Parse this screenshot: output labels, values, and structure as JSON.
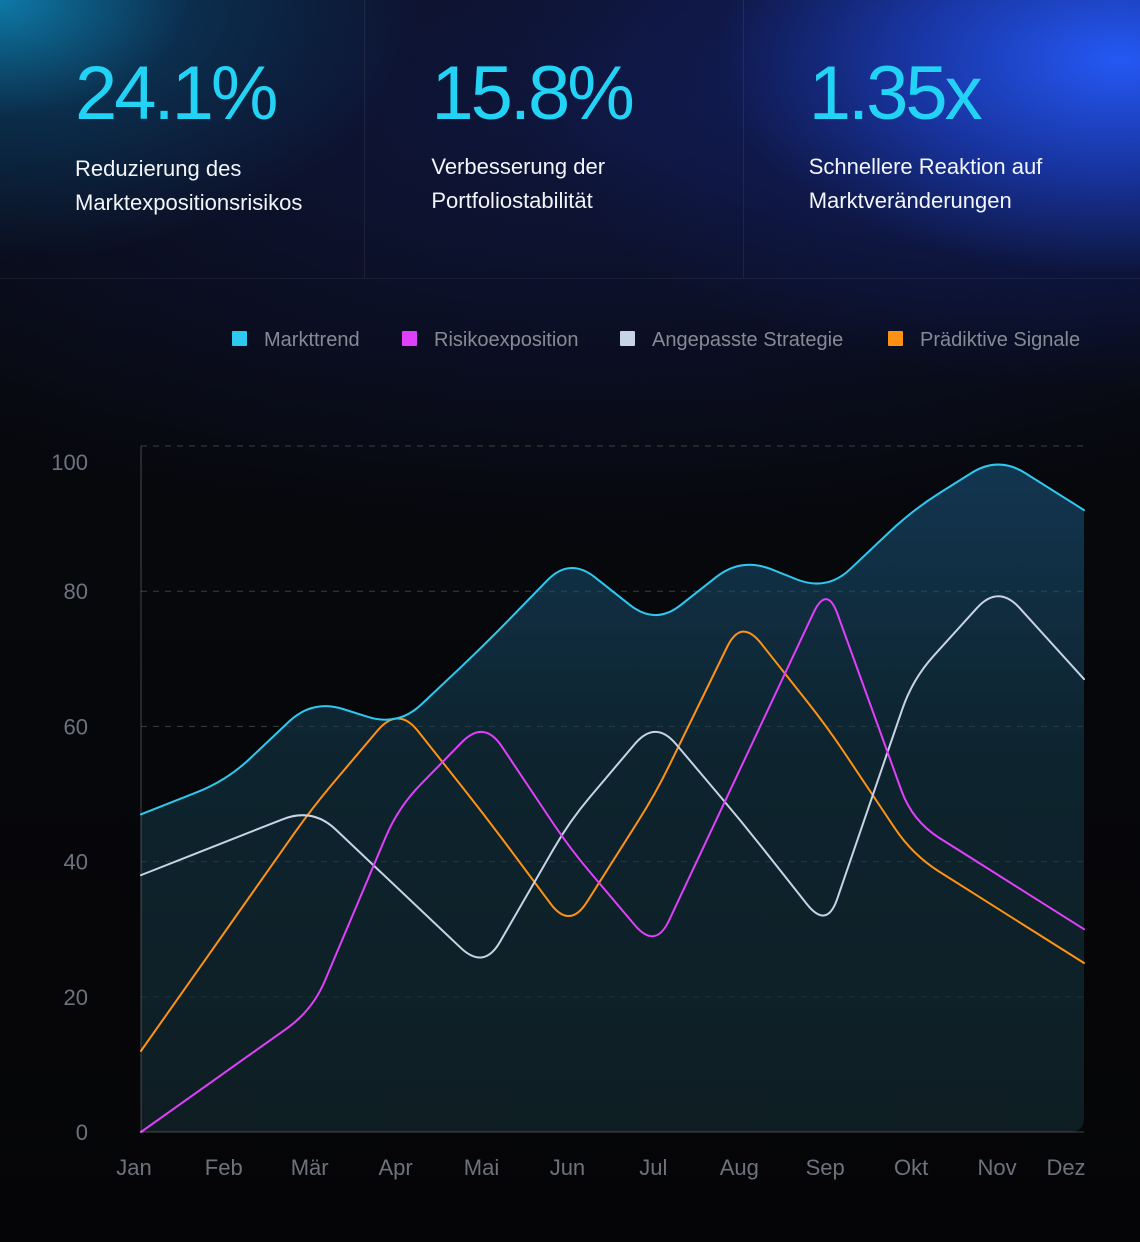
{
  "stats": [
    {
      "value": "24.1%",
      "label_line1": "Reduzierung des",
      "label_line2": "Marktexpositionsrisikos"
    },
    {
      "value": "15.8%",
      "label_line1": "Verbesserung der",
      "label_line2": "Portfoliostabilität"
    },
    {
      "value": "1.35x",
      "label_line1": "Schnellere Reaktion auf",
      "label_line2": "Marktveränderungen"
    }
  ],
  "colors": {
    "accent": "#22d3f5",
    "markttrend": "#2ec9f0",
    "risikoexposition": "#e040fb",
    "angepasste_strategie": "#c7d3e6",
    "praediktive_signale": "#ff9215"
  },
  "chart_data": {
    "type": "line",
    "title": "",
    "xlabel": "",
    "ylabel": "",
    "ylim": [
      0,
      100
    ],
    "yticks": [
      0,
      20,
      40,
      60,
      80,
      100
    ],
    "grid": true,
    "legend_placement": "top-right",
    "categories": [
      "Jan",
      "Feb",
      "Mär",
      "Apr",
      "Mai",
      "Jun",
      "Jul",
      "Aug",
      "Sep",
      "Okt",
      "Nov",
      "Dez"
    ],
    "series": [
      {
        "name": "Markttrend",
        "color": "#2ec9f0",
        "filled": true,
        "values": [
          47,
          52,
          64,
          60,
          72,
          85,
          75,
          85,
          80,
          92,
          100,
          92
        ]
      },
      {
        "name": "Risikoexposition",
        "color": "#e040fb",
        "filled": false,
        "values": [
          0,
          9,
          18,
          48,
          61,
          42,
          27,
          54,
          81,
          46,
          38,
          30
        ]
      },
      {
        "name": "Angepasste Strategie",
        "color": "#c7d3e6",
        "filled": false,
        "values": [
          38,
          43,
          48,
          36,
          24,
          46,
          61,
          46,
          30,
          67,
          81,
          67
        ]
      },
      {
        "name": "Prädiktive Signale",
        "color": "#ff9215",
        "filled": false,
        "values": [
          12,
          30,
          48,
          63,
          47,
          30,
          50,
          76,
          60,
          41,
          33,
          25
        ]
      }
    ]
  }
}
